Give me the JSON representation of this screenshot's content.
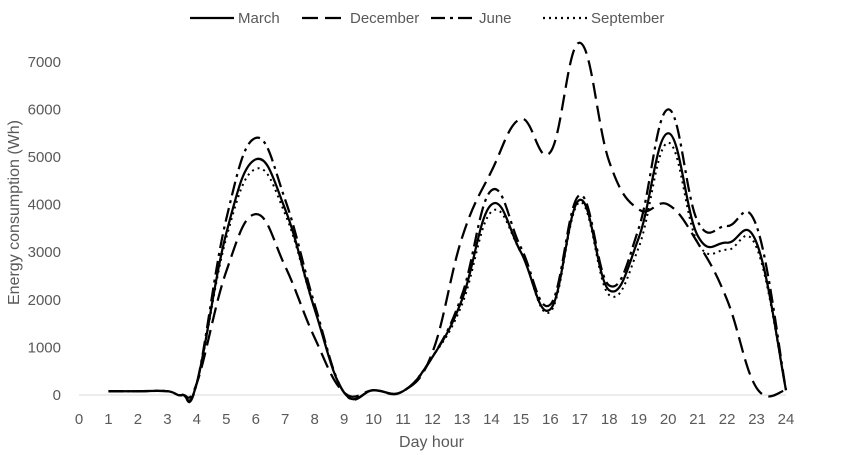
{
  "chart_data": {
    "type": "line",
    "title": "",
    "xlabel": "Day hour",
    "ylabel": "Energy consumption (Wh)",
    "xlim": [
      0,
      24
    ],
    "ylim": [
      0,
      7500
    ],
    "x_ticks": [
      0,
      1,
      2,
      3,
      4,
      5,
      6,
      7,
      8,
      9,
      10,
      11,
      12,
      13,
      14,
      15,
      16,
      17,
      18,
      19,
      20,
      21,
      22,
      23,
      24
    ],
    "y_ticks": [
      0,
      1000,
      2000,
      3000,
      4000,
      5000,
      6000,
      7000
    ],
    "grid": false,
    "legend_position": "top",
    "colors": {
      "line": "#000000",
      "text": "#595959",
      "axis": "#d9d9d9"
    },
    "series": [
      {
        "name": "March",
        "style": "solid",
        "x": [
          1,
          2,
          3,
          3.5,
          4,
          5,
          6,
          7,
          8,
          9,
          10,
          11,
          12,
          13,
          14,
          15,
          16,
          17,
          18,
          19,
          20,
          21,
          22,
          23,
          24
        ],
        "y": [
          80,
          80,
          80,
          0,
          250,
          3400,
          4950,
          3900,
          1800,
          50,
          100,
          80,
          800,
          2000,
          4000,
          3000,
          1800,
          4100,
          2200,
          3300,
          5500,
          3350,
          3200,
          3200,
          100
        ]
      },
      {
        "name": "December",
        "style": "dashed",
        "x": [
          1,
          2,
          3,
          3.5,
          4,
          5,
          6,
          7,
          8,
          9,
          10,
          11,
          12,
          13,
          14,
          15,
          16,
          17,
          18,
          19,
          20,
          21,
          22,
          23,
          24
        ],
        "y": [
          80,
          80,
          80,
          0,
          250,
          2600,
          3800,
          2700,
          1200,
          50,
          100,
          80,
          900,
          3300,
          4700,
          5800,
          5100,
          7400,
          4900,
          3900,
          4000,
          3200,
          2000,
          150,
          100
        ]
      },
      {
        "name": "June",
        "style": "dashdot",
        "x": [
          1,
          2,
          3,
          3.5,
          4,
          5,
          6,
          7,
          8,
          9,
          10,
          11,
          12,
          13,
          14,
          15,
          16,
          17,
          18,
          19,
          20,
          21,
          22,
          23,
          24
        ],
        "y": [
          80,
          80,
          80,
          0,
          250,
          3700,
          5400,
          4100,
          1900,
          50,
          100,
          80,
          800,
          2100,
          4300,
          3100,
          1900,
          4200,
          2300,
          3500,
          6000,
          3650,
          3550,
          3550,
          100
        ]
      },
      {
        "name": "September",
        "style": "dotted",
        "x": [
          1,
          2,
          3,
          3.5,
          4,
          5,
          6,
          7,
          8,
          9,
          10,
          11,
          12,
          13,
          14,
          15,
          16,
          17,
          18,
          19,
          20,
          21,
          22,
          23,
          24
        ],
        "y": [
          80,
          80,
          80,
          0,
          250,
          3300,
          4750,
          3800,
          1800,
          50,
          100,
          80,
          800,
          1900,
          3850,
          3000,
          1750,
          4050,
          2100,
          3100,
          5300,
          3200,
          3050,
          3100,
          100
        ]
      }
    ]
  }
}
